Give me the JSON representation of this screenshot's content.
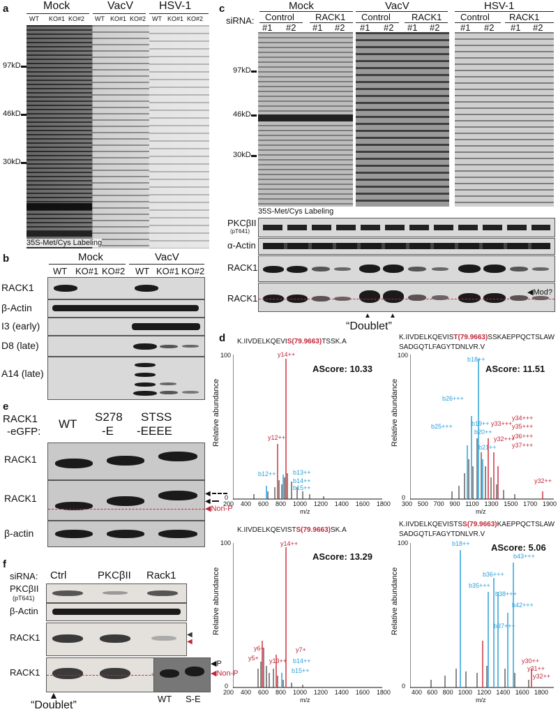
{
  "panels": {
    "a": "a",
    "b": "b",
    "c": "c",
    "d": "d",
    "e": "e",
    "f": "f"
  },
  "a": {
    "groups": [
      "Mock",
      "VacV",
      "HSV-1"
    ],
    "lanes": [
      "WT",
      "KO#1",
      "KO#2",
      "WT",
      "KO#1",
      "KO#2",
      "WT",
      "KO#1",
      "KO#2"
    ],
    "markers": [
      "97kD",
      "46kD",
      "30kD"
    ],
    "caption": "35S-Met/Cys Labeling"
  },
  "b": {
    "groups": [
      "Mock",
      "VacV"
    ],
    "lanes": [
      "WT",
      "KO#1",
      "KO#2",
      "WT",
      "KO#1",
      "KO#2"
    ],
    "rows": [
      "RACK1",
      "β-Actin",
      "I3 (early)",
      "D8 (late)",
      "A14 (late)"
    ]
  },
  "c": {
    "sirna_label": "siRNA:",
    "groups": [
      "Mock",
      "VacV",
      "HSV-1"
    ],
    "subgroups": [
      "Control",
      "RACK1",
      "Control",
      "RACK1",
      "Control",
      "RACK1"
    ],
    "lanes": [
      "#1",
      "#2",
      "#1",
      "#2",
      "#1",
      "#2",
      "#1",
      "#2",
      "#1",
      "#2",
      "#1",
      "#2"
    ],
    "markers": [
      "97kD",
      "46kD",
      "30kD"
    ],
    "caption": "35S-Met/Cys Labeling",
    "blot_rows": {
      "pkc": "PKCβII",
      "pkc_sub": "(pT641)",
      "actin": "α-Actin",
      "rack1_a": "RACK1",
      "rack1_b": "RACK1"
    },
    "mod_label": "Mod?",
    "doublet": "“Doublet”"
  },
  "d": {
    "spectra": [
      {
        "peptide_pre": "K.IIVDELKQEVI",
        "peptide_mod": "S(79.9663)",
        "peptide_post": "TSSK.A",
        "ascore": "AScore: 10.33",
        "xticks": [
          "200",
          "400",
          "600",
          "800",
          "1000",
          "1200",
          "1400",
          "1600",
          "1800"
        ],
        "ions_red": [
          "y14++",
          "y12++"
        ],
        "ions_blue": [
          "b12++",
          "b13++",
          "b14++",
          "b15++"
        ]
      },
      {
        "peptide_pre": "K.IIVDELKQEVIS",
        "peptide_mod": "T(79.9663)",
        "peptide_post": "SSKAEPPQCTSLAW",
        "peptide_line2": "SADGQTLFAGYTDNLVR.V",
        "ascore": "AScore: 11.51",
        "xticks": [
          "300",
          "500",
          "700",
          "900",
          "1100",
          "1300",
          "1500",
          "1700",
          "1900"
        ],
        "ions_red": [
          "y34+++",
          "y33+++",
          "y35+++",
          "y32+++",
          "y36+++",
          "y37+++",
          "y32++"
        ],
        "ions_blue": [
          "b18++",
          "b26+++",
          "b25+++",
          "b19++",
          "b20++",
          "b21++"
        ]
      },
      {
        "peptide_pre": "K.IIVDELKQEVIST",
        "peptide_mod": "S(79.9663)",
        "peptide_post": "SK.A",
        "ascore": "AScore: 13.29",
        "xticks": [
          "200",
          "400",
          "600",
          "800",
          "1000",
          "1200",
          "1400",
          "1600",
          "1800"
        ],
        "ions_red": [
          "y14++",
          "y6+",
          "y7+",
          "y5+",
          "y13++"
        ],
        "ions_blue": [
          "b14++",
          "b15++"
        ]
      },
      {
        "peptide_pre": "K.IIVDELKQEVISTS",
        "peptide_mod": "S(79.9663)",
        "peptide_post": "KAEPPQCTSLAW",
        "peptide_line2": "SADGQTLFAGYTDNLVR.V",
        "ascore": "AScore: 5.06",
        "xticks": [
          "400",
          "600",
          "800",
          "1000",
          "1200",
          "1400",
          "1600",
          "1800"
        ],
        "ions_red": [
          "y30++",
          "y31++",
          "y32++"
        ],
        "ions_blue": [
          "b18++",
          "b43+++",
          "b36+++",
          "b35+++",
          "b38+++",
          "b42+++",
          "b37+++"
        ]
      }
    ],
    "ylabel": "Relative abundance",
    "xlabel": "m/z",
    "y100": "100",
    "y0": "0"
  },
  "e": {
    "construct": "RACK1",
    "construct2": "-eGFP:",
    "lanes": [
      "WT",
      "S278",
      "-E",
      "STSS",
      "-EEEE"
    ],
    "rows": [
      "RACK1",
      "RACK1",
      "β-actin"
    ],
    "nonp": "Non-P"
  },
  "f": {
    "sirna_label": "siRNA:",
    "lanes": [
      "Ctrl",
      "PKCβII",
      "Rack1"
    ],
    "rows": [
      "PKCβII",
      "(pT641)",
      "β-Actin",
      "RACK1",
      "RACK1"
    ],
    "p": "P",
    "nonp": "Non-P",
    "side_lanes": [
      "WT",
      "S-E"
    ],
    "doublet": "“Doublet”"
  }
}
